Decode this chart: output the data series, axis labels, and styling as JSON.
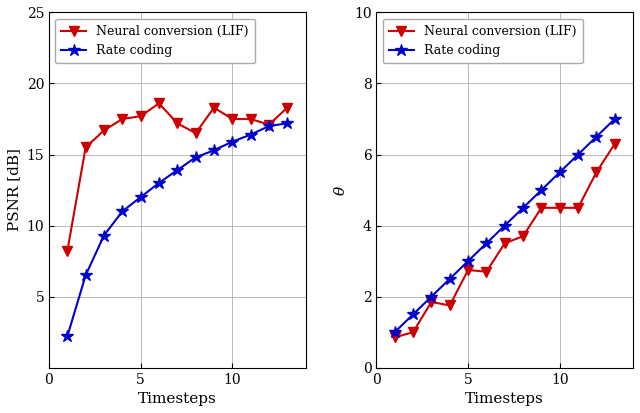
{
  "xlabel": "Timesteps",
  "left_ylabel": "PSNR [dB]",
  "right_ylabel": "$\\theta$",
  "left_xlim": [
    0,
    14
  ],
  "left_ylim": [
    0,
    25
  ],
  "right_xlim": [
    0,
    14
  ],
  "right_ylim": [
    0,
    10
  ],
  "left_xticks": [
    0,
    5,
    10
  ],
  "left_yticks": [
    5,
    10,
    15,
    20,
    25
  ],
  "right_xticks": [
    0,
    5,
    10
  ],
  "right_yticks": [
    0,
    2,
    4,
    6,
    8,
    10
  ],
  "lif_x_left": [
    1,
    2,
    3,
    4,
    5,
    6,
    7,
    8,
    9,
    10,
    11,
    12,
    13
  ],
  "lif_y_left": [
    8.2,
    15.5,
    16.7,
    17.5,
    17.7,
    18.6,
    17.2,
    16.5,
    18.3,
    17.5,
    17.5,
    17.1,
    18.3
  ],
  "rate_x_left": [
    1,
    2,
    3,
    4,
    5,
    6,
    7,
    8,
    9,
    10,
    11,
    12,
    13
  ],
  "rate_y_left": [
    2.2,
    6.5,
    9.3,
    11.0,
    12.0,
    13.0,
    13.9,
    14.8,
    15.3,
    15.9,
    16.4,
    17.0,
    17.2
  ],
  "lif_x_right": [
    1,
    2,
    3,
    4,
    5,
    6,
    7,
    8,
    9,
    10,
    11,
    12,
    13
  ],
  "lif_y_right": [
    0.85,
    1.0,
    1.85,
    1.75,
    2.75,
    2.7,
    3.5,
    3.7,
    4.5,
    4.5,
    4.5,
    5.5,
    6.3
  ],
  "rate_x_right": [
    1,
    2,
    3,
    4,
    5,
    6,
    7,
    8,
    9,
    10,
    11,
    12,
    13
  ],
  "rate_y_right": [
    1.0,
    1.5,
    2.0,
    2.5,
    3.0,
    3.5,
    4.0,
    4.5,
    5.0,
    5.5,
    6.0,
    6.5,
    7.0
  ],
  "lif_color": "#cc0000",
  "rate_color": "#0000cc",
  "lif_label": "Neural conversion (LIF)",
  "rate_label": "Rate coding",
  "lif_marker": "v",
  "rate_marker": "*",
  "linewidth": 1.5,
  "markersize_lif": 7,
  "markersize_rate": 9,
  "legend_fontsize": 9,
  "axis_fontsize": 11,
  "tick_fontsize": 10,
  "grid_color": "#b0b0b0",
  "grid_linewidth": 0.6
}
